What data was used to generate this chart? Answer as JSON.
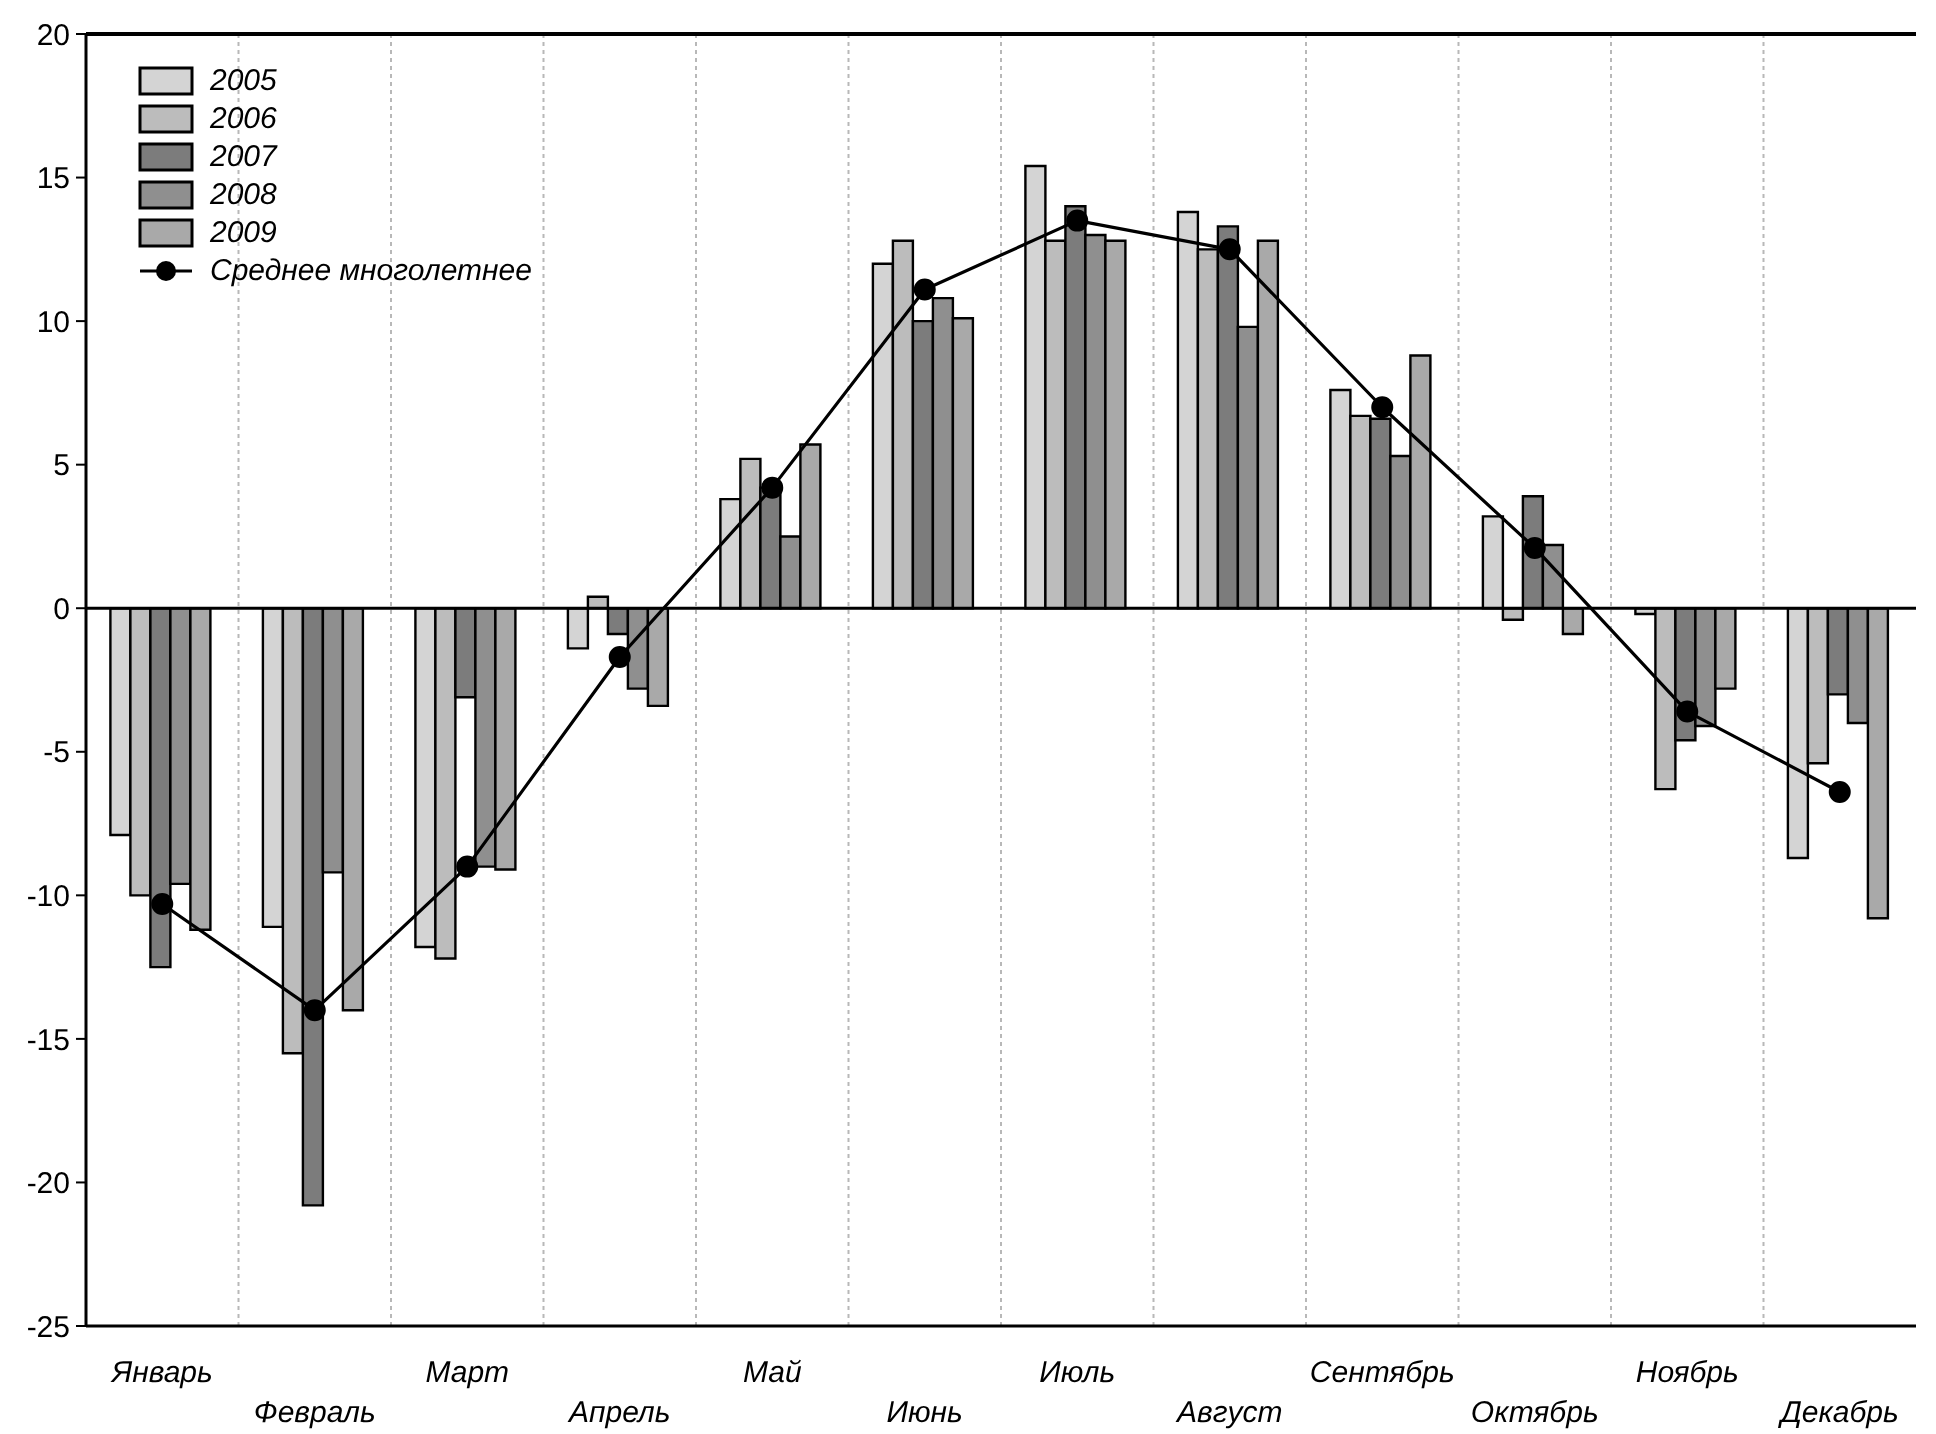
{
  "chart_data": {
    "type": "bar",
    "categories": [
      "Январь",
      "Февраль",
      "Март",
      "Апрель",
      "Май",
      "Июнь",
      "Июль",
      "Август",
      "Сентябрь",
      "Октябрь",
      "Ноябрь",
      "Декабрь"
    ],
    "series": [
      {
        "name": "2005",
        "color": "#d4d4d4",
        "values": [
          -7.9,
          -11.1,
          -11.8,
          -1.4,
          3.8,
          12.0,
          15.4,
          13.8,
          7.6,
          3.2,
          -0.2,
          -8.7
        ]
      },
      {
        "name": "2006",
        "color": "#bcbcbc",
        "values": [
          -10.0,
          -15.5,
          -12.2,
          0.4,
          5.2,
          12.8,
          12.8,
          12.5,
          6.7,
          -0.4,
          -6.3,
          -5.4
        ]
      },
      {
        "name": "2007",
        "color": "#7c7c7c",
        "values": [
          -12.5,
          -20.8,
          -3.1,
          -0.9,
          4.2,
          10.0,
          14.0,
          13.3,
          6.6,
          3.9,
          -4.6,
          -3.0
        ]
      },
      {
        "name": "2008",
        "color": "#8f8f8f",
        "values": [
          -9.6,
          -9.2,
          -9.0,
          -2.8,
          2.5,
          10.8,
          13.0,
          9.8,
          5.3,
          2.2,
          -4.1,
          -4.0
        ]
      },
      {
        "name": "2009",
        "color": "#a9a9a9",
        "values": [
          -11.2,
          -14.0,
          -9.1,
          -3.4,
          5.7,
          10.1,
          12.8,
          12.8,
          8.8,
          -0.9,
          -2.8,
          -10.8
        ]
      },
      {
        "name": "Среднее многолетнее",
        "type": "line",
        "color": "#000000",
        "values": [
          -10.3,
          -14.0,
          -9.0,
          -1.7,
          4.2,
          11.1,
          13.5,
          12.5,
          7.0,
          2.1,
          -3.6,
          -6.4
        ]
      }
    ],
    "ylim": [
      -25,
      20
    ],
    "yticks": [
      -25,
      -20,
      -15,
      -10,
      -5,
      0,
      5,
      10,
      15,
      20
    ],
    "ref_lines": [
      {
        "axis": "y",
        "value": 0,
        "color": "#000000"
      }
    ],
    "grid": true,
    "legend": "top left",
    "marker": "circle"
  }
}
